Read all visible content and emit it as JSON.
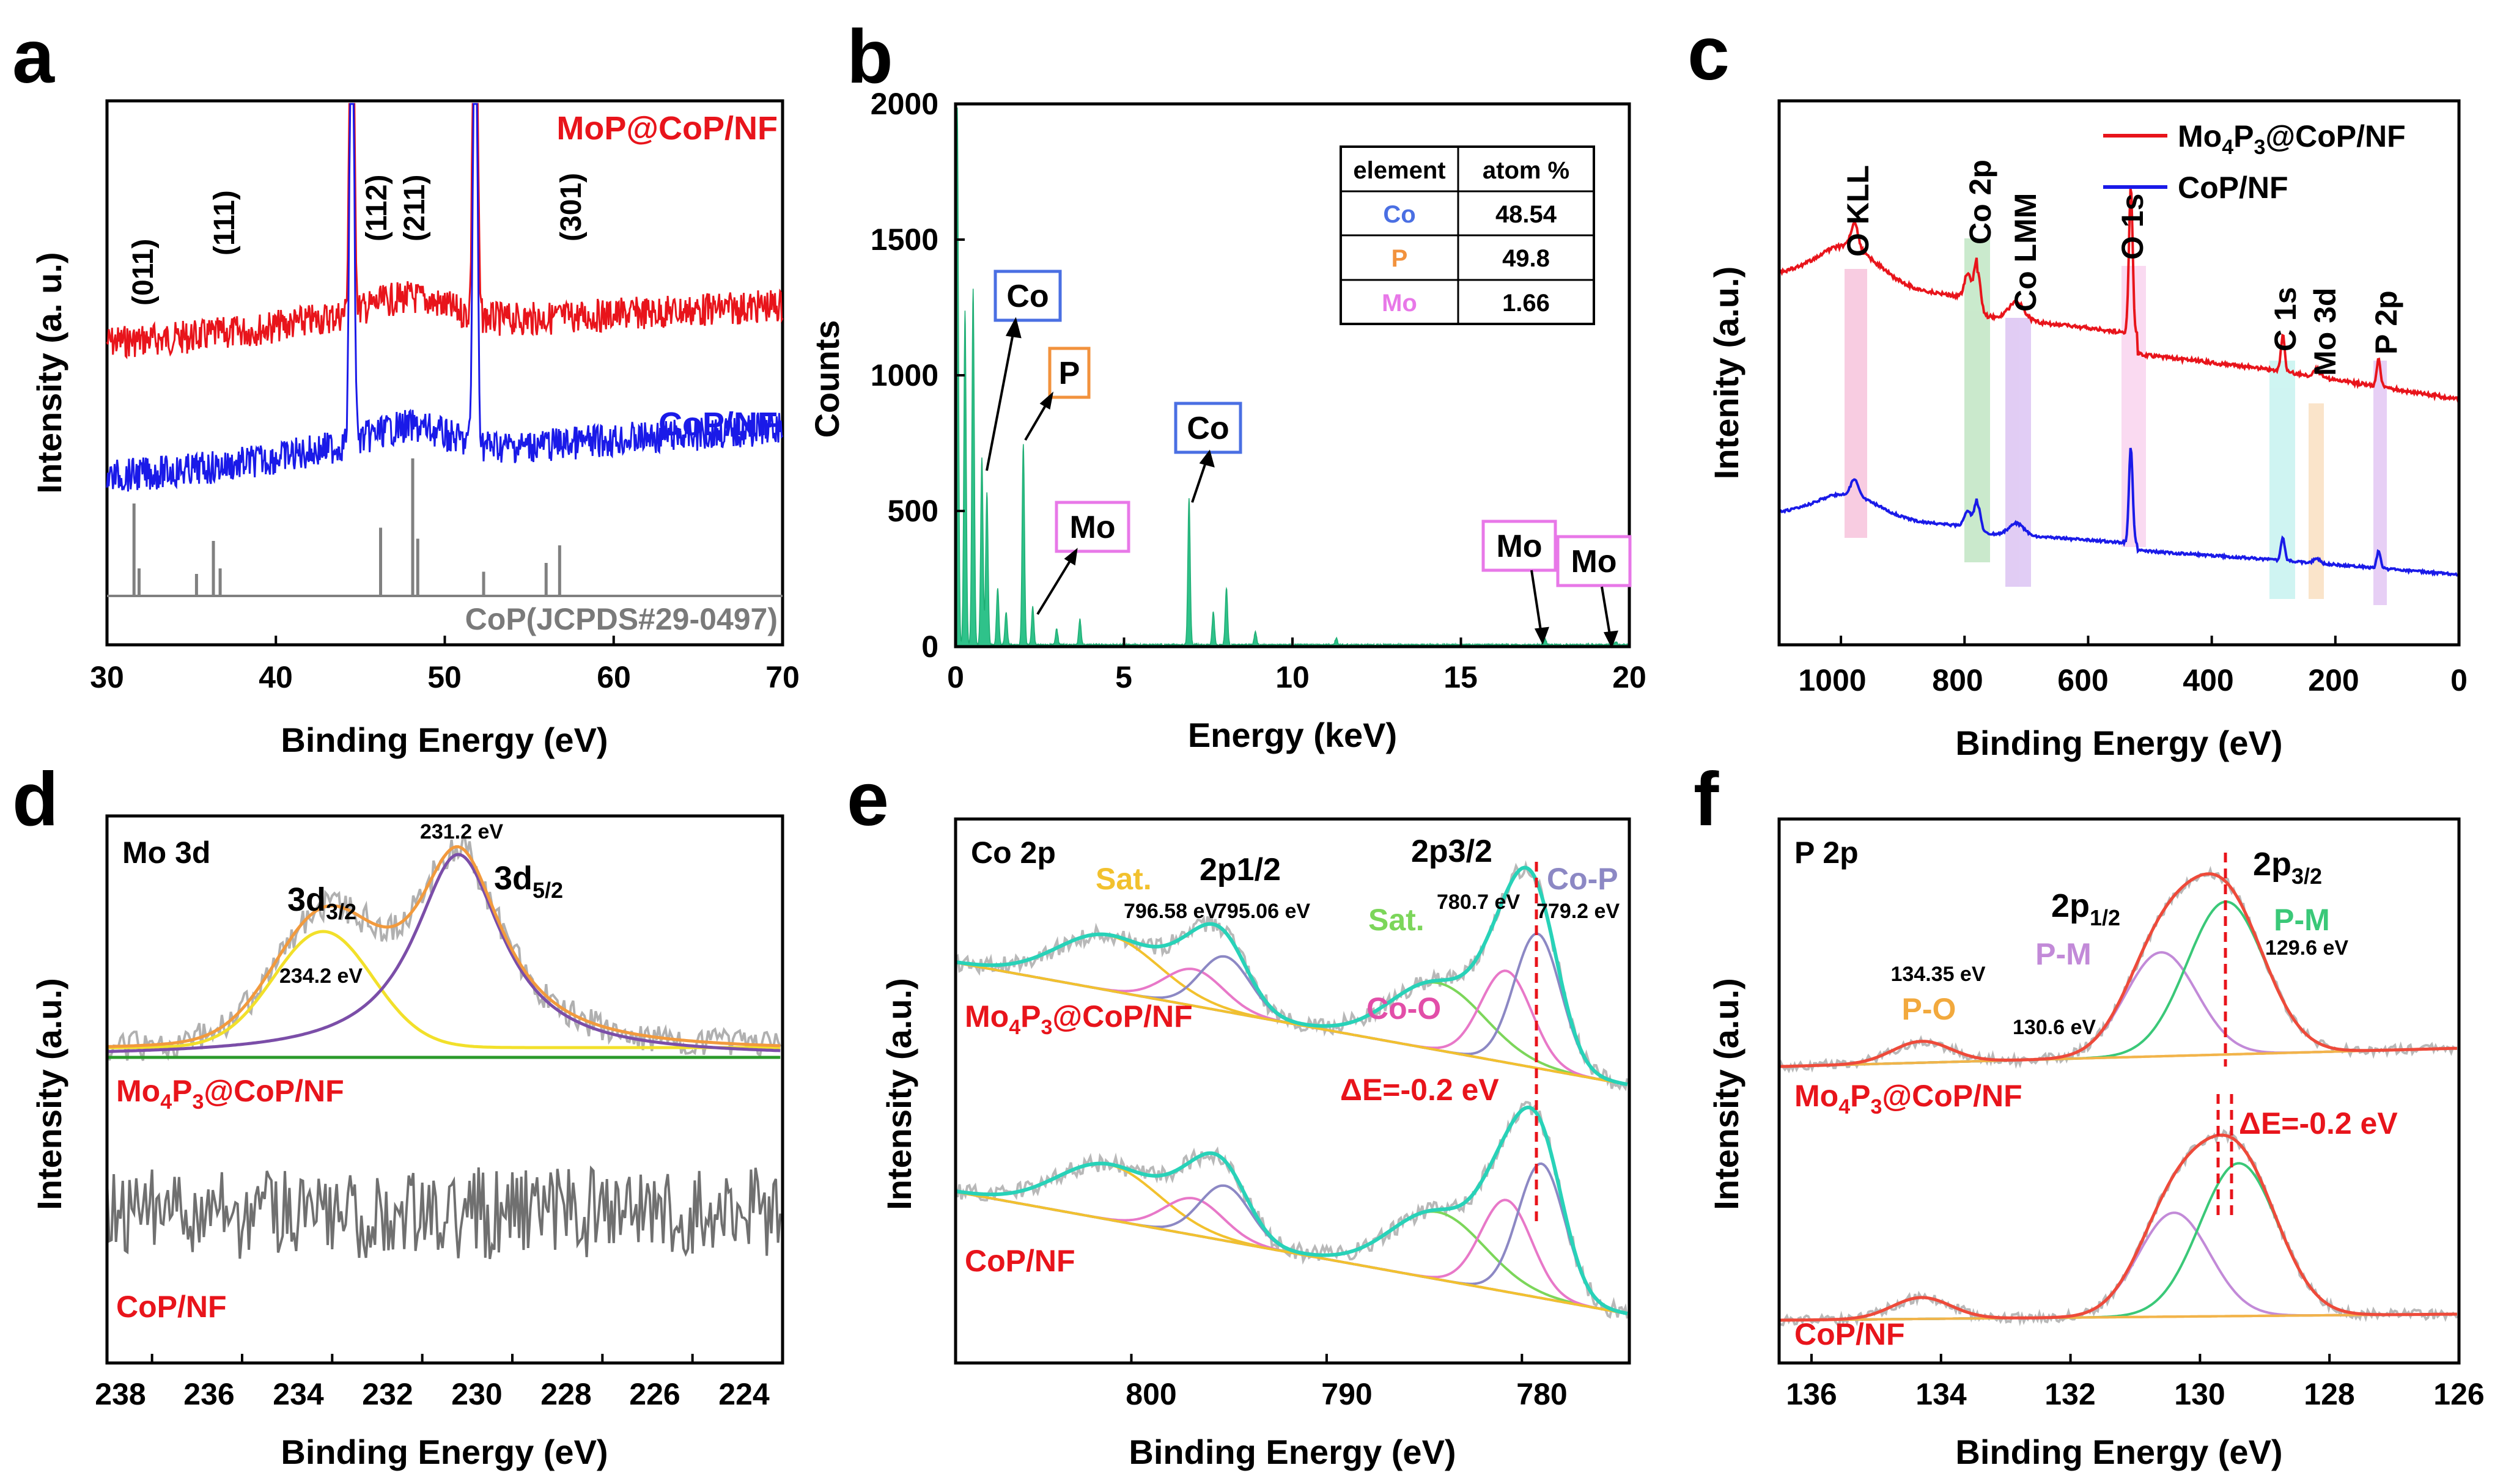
{
  "chart_data": [
    {
      "panel": "a",
      "type": "line",
      "xlabel": "Binding Energy (eV)",
      "ylabel": "Intensity (a. u.)",
      "xlim": [
        30,
        70
      ],
      "xticks": [
        30,
        40,
        50,
        60,
        70
      ],
      "series": [
        {
          "name": "MoP@CoP/NF",
          "color": "#e8141b"
        },
        {
          "name": "CoP/NF",
          "color": "#1a1ae8"
        },
        {
          "name": "CoP(JCPDS#29-0497)",
          "color": "#808080"
        }
      ],
      "peak_labels": [
        {
          "text": "(011)",
          "x": 31.6
        },
        {
          "text": "(111)",
          "x": 36.4
        },
        {
          "text": "(112)",
          "x": 46.2
        },
        {
          "text": "(211)",
          "x": 48.1
        },
        {
          "text": "(301)",
          "x": 56.8
        }
      ],
      "reference_lines": [
        {
          "x": 31.6,
          "h": 0.84
        },
        {
          "x": 31.9,
          "h": 0.25
        },
        {
          "x": 35.3,
          "h": 0.2
        },
        {
          "x": 36.3,
          "h": 0.5
        },
        {
          "x": 36.7,
          "h": 0.25
        },
        {
          "x": 46.2,
          "h": 0.62
        },
        {
          "x": 48.1,
          "h": 1.25
        },
        {
          "x": 48.4,
          "h": 0.52
        },
        {
          "x": 52.3,
          "h": 0.22
        },
        {
          "x": 56.0,
          "h": 0.3
        },
        {
          "x": 56.8,
          "h": 0.46
        }
      ],
      "substrate_peaks": [
        44.5,
        51.8
      ]
    },
    {
      "panel": "b",
      "type": "bar",
      "xlabel": "Energy (keV)",
      "ylabel": "Counts",
      "xlim": [
        0,
        20
      ],
      "ylim": [
        0,
        2000
      ],
      "xticks": [
        0,
        5,
        10,
        15,
        20
      ],
      "yticks": [
        0,
        500,
        1000,
        1500,
        2000
      ],
      "peaks": [
        {
          "x": 0.05,
          "y": 1980
        },
        {
          "x": 0.28,
          "y": 1230
        },
        {
          "x": 0.52,
          "y": 1310
        },
        {
          "x": 0.78,
          "y": 690
        },
        {
          "x": 0.93,
          "y": 560
        },
        {
          "x": 1.25,
          "y": 210
        },
        {
          "x": 1.5,
          "y": 120
        },
        {
          "x": 2.01,
          "y": 740
        },
        {
          "x": 2.29,
          "y": 140
        },
        {
          "x": 3.0,
          "y": 60
        },
        {
          "x": 3.69,
          "y": 95
        },
        {
          "x": 6.93,
          "y": 540
        },
        {
          "x": 7.65,
          "y": 120
        },
        {
          "x": 8.04,
          "y": 210
        },
        {
          "x": 8.9,
          "y": 50
        },
        {
          "x": 11.3,
          "y": 25
        },
        {
          "x": 17.5,
          "y": 20
        },
        {
          "x": 19.6,
          "y": 12
        }
      ],
      "peak_labels": [
        "Co",
        "P",
        "Mo",
        "Co",
        "Mo",
        "Mo"
      ],
      "table": {
        "headers": [
          "element",
          "atom %"
        ],
        "rows": [
          {
            "element": "Co",
            "value": "48.54",
            "color": "#4a6fe3"
          },
          {
            "element": "P",
            "value": "49.8",
            "color": "#f2923d"
          },
          {
            "element": "Mo",
            "value": "1.66",
            "color": "#e878e8"
          }
        ]
      }
    },
    {
      "panel": "c",
      "type": "line",
      "xlabel": "Binding Energy (eV)",
      "ylabel": "Intenity (a.u.)",
      "xlim": [
        1100,
        0
      ],
      "xticks": [
        1000,
        800,
        600,
        400,
        200,
        0
      ],
      "series": [
        {
          "name": "Mo4P3@CoP/NF",
          "color": "#e8141b"
        },
        {
          "name": "CoP/NF",
          "color": "#1a1ae8"
        }
      ],
      "band_labels": [
        "O KLL",
        "Co 2p",
        "Co LMM",
        "O 1s",
        "C 1s",
        "Mo 3d",
        "P 2p"
      ]
    },
    {
      "panel": "d",
      "type": "line",
      "inset_title": "Mo 3d",
      "xlabel": "Binding Energy (eV)",
      "ylabel": "Intensity (a.u.)",
      "xlim": [
        239,
        224
      ],
      "xticks": [
        238,
        236,
        234,
        232,
        230,
        228,
        226,
        224
      ],
      "series": [
        {
          "name": "Mo4P3@CoP/NF",
          "color": "#e8141b"
        },
        {
          "name": "CoP/NF",
          "color": "#e8141b"
        }
      ],
      "peaks": [
        {
          "label": "3d3/2",
          "x": 234.2,
          "annotation": "234.2 eV"
        },
        {
          "label": "3d5/2",
          "x": 231.2,
          "annotation": "231.2 eV"
        }
      ]
    },
    {
      "panel": "e",
      "type": "line",
      "inset_title": "Co 2p",
      "xlabel": "Binding Energy (eV)",
      "ylabel": "Intensity (a.u.)",
      "xlim": [
        809,
        774.5
      ],
      "xticks": [
        800,
        790,
        780
      ],
      "series": [
        {
          "name": "Mo4P3@CoP/NF",
          "color": "#e8141b"
        },
        {
          "name": "CoP/NF",
          "color": "#e8141b"
        }
      ],
      "peaks": [
        {
          "label": "Sat.",
          "x": 801.2
        },
        {
          "label": "2p1/2",
          "x": 795.06
        },
        {
          "label": "2p3/2",
          "x": 779.2
        },
        {
          "label": "Sat.",
          "x": 784.2
        },
        {
          "label": "Co-P",
          "x": 779.2
        },
        {
          "label": "Co-O",
          "x": 780.7
        }
      ],
      "energy_labels": [
        "796.58 eV",
        "795.06 eV",
        "780.7 eV",
        "779.2 eV"
      ],
      "shift": "ΔE=-0.2 eV"
    },
    {
      "panel": "f",
      "type": "line",
      "inset_title": "P 2p",
      "xlabel": "Binding Energy (eV)",
      "ylabel": "Intensity (a.u.)",
      "xlim": [
        136.5,
        126
      ],
      "xticks": [
        136,
        134,
        132,
        130,
        128,
        126
      ],
      "series": [
        {
          "name": "Mo4P3@CoP/NF",
          "color": "#e8141b"
        },
        {
          "name": "CoP/NF",
          "color": "#e8141b"
        }
      ],
      "peaks": [
        {
          "label": "P-O",
          "x": 134.35,
          "annotation": "134.35 eV"
        },
        {
          "label": "P-M",
          "x": 130.6,
          "annotation": "130.6 eV"
        },
        {
          "label": "P-M",
          "x": 129.6,
          "annotation": "129.6 eV"
        }
      ],
      "shift": "ΔE=-0.2 eV"
    }
  ],
  "text": {
    "a": {
      "panel": "a",
      "ylabel": "Intensity (a. u.)",
      "xlabel": "Binding Energy (eV)",
      "legend1": "MoP@CoP/NF",
      "legend2": "CoP/NF",
      "ref": "CoP(JCPDS#29-0497)",
      "hkl1": "(011)",
      "hkl2": "(111)",
      "hkl3": "(112)",
      "hkl4": "(211)",
      "hkl5": "(301)",
      "t30": "30",
      "t40": "40",
      "t50": "50",
      "t60": "60",
      "t70": "70"
    },
    "b": {
      "panel": "b",
      "ylabel": "Counts",
      "xlabel": "Energy (keV)",
      "co": "Co",
      "p": "P",
      "mo": "Mo",
      "th_el": "element",
      "th_at": "atom %",
      "r1e": "Co",
      "r1v": "48.54",
      "r2e": "P",
      "r2v": "49.8",
      "r3e": "Mo",
      "r3v": "1.66",
      "x0": "0",
      "x5": "5",
      "x10": "10",
      "x15": "15",
      "x20": "20",
      "y0": "0",
      "y500": "500",
      "y1000": "1000",
      "y1500": "1500",
      "y2000": "2000"
    },
    "c": {
      "panel": "c",
      "ylabel": "Intenity (a.u.)",
      "xlabel": "Binding Energy (eV)",
      "leg1_main": "Mo",
      "leg1_s1": "4",
      "leg1_mid": "P",
      "leg1_s2": "3",
      "leg1_end": "@CoP/NF",
      "leg2": "CoP/NF",
      "okll": "O KLL",
      "co2p": "Co 2p",
      "colmm": "Co LMM",
      "o1s": "O 1s",
      "c1s": "C 1s",
      "mo3d": "Mo 3d",
      "p2p": "P 2p",
      "t1000": "1000",
      "t800": "800",
      "t600": "600",
      "t400": "400",
      "t200": "200",
      "t0": "0"
    },
    "d": {
      "panel": "d",
      "ylabel": "Intensity (a.u.)",
      "xlabel": "Binding Energy (eV)",
      "title": "Mo 3d",
      "e1": "231.2 eV",
      "e2": "234.2 eV",
      "l32_main": "3d",
      "l32_sub": "3/2",
      "l52_main": "3d",
      "l52_sub": "5/2",
      "s1_main": "Mo",
      "s1_s1": "4",
      "s1_mid": "P",
      "s1_s2": "3",
      "s1_end": "@CoP/NF",
      "s2": "CoP/NF",
      "t238": "238",
      "t236": "236",
      "t234": "234",
      "t232": "232",
      "t230": "230",
      "t228": "228",
      "t226": "226",
      "t224": "224"
    },
    "e": {
      "panel": "e",
      "ylabel": "Intensity (a.u.)",
      "xlabel": "Binding Energy (eV)",
      "title": "Co 2p",
      "sat1": "Sat.",
      "p12": "2p1/2",
      "p32": "2p3/2",
      "sat2": "Sat.",
      "cop": "Co-P",
      "coo": "Co-O",
      "e1": "796.58 eV",
      "e2": "795.06 eV",
      "e3": "780.7 eV",
      "e4": "779.2 eV",
      "de": "ΔE=-0.2 eV",
      "s1_main": "Mo",
      "s1_s1": "4",
      "s1_mid": "P",
      "s1_s2": "3",
      "s1_end": "@CoP/NF",
      "s2": "CoP/NF",
      "t800": "800",
      "t790": "790",
      "t780": "780"
    },
    "f": {
      "panel": "f",
      "ylabel": "Intensity (a.u.)",
      "xlabel": "Binding Energy (eV)",
      "title": "P 2p",
      "e1": "134.35 eV",
      "e2": "130.6 eV",
      "e3": "129.6 eV",
      "po": "P-O",
      "pm1": "P-M",
      "pm2": "P-M",
      "p12_main": "2p",
      "p12_sub": "1/2",
      "p32_main": "2p",
      "p32_sub": "3/2",
      "de": "ΔE=-0.2 eV",
      "s1_main": "Mo",
      "s1_s1": "4",
      "s1_mid": "P",
      "s1_s2": "3",
      "s1_end": "@CoP/NF",
      "s2": "CoP/NF",
      "t136": "136",
      "t134": "134",
      "t132": "132",
      "t130": "130",
      "t128": "128",
      "t126": "126"
    }
  }
}
